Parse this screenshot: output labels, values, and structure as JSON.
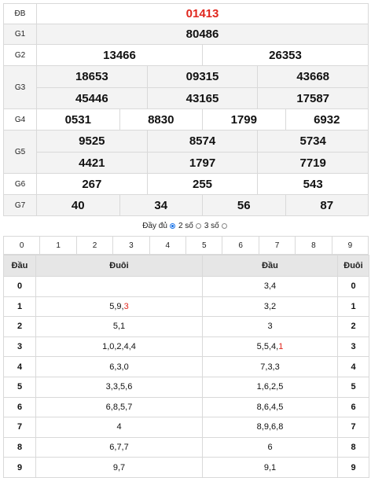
{
  "results": {
    "db": {
      "label": "ĐB",
      "numbers": [
        "01413"
      ]
    },
    "g1": {
      "label": "G1",
      "numbers": [
        "80486"
      ]
    },
    "g2": {
      "label": "G2",
      "numbers": [
        "13466",
        "26353"
      ]
    },
    "g3": {
      "label": "G3",
      "numbers": [
        "18653",
        "09315",
        "43668",
        "45446",
        "43165",
        "17587"
      ]
    },
    "g4": {
      "label": "G4",
      "numbers": [
        "0531",
        "8830",
        "1799",
        "6932"
      ]
    },
    "g5": {
      "label": "G5",
      "numbers": [
        "9525",
        "8574",
        "5734",
        "4421",
        "1797",
        "7719"
      ]
    },
    "g6": {
      "label": "G6",
      "numbers": [
        "267",
        "255",
        "543"
      ]
    },
    "g7": {
      "label": "G7",
      "numbers": [
        "40",
        "34",
        "56",
        "87"
      ]
    }
  },
  "options": {
    "full": "Đầy đủ",
    "two": "2 số",
    "three": "3 số",
    "selected": "two"
  },
  "digit_tabs": [
    "0",
    "1",
    "2",
    "3",
    "4",
    "5",
    "6",
    "7",
    "8",
    "9"
  ],
  "loto": {
    "headers": {
      "dau": "Đầu",
      "duoi": "Đuôi",
      "dau2": "Đầu",
      "duoi2": "Đuôi"
    },
    "rows": [
      {
        "left_digit": "0",
        "left_vals": "",
        "left_red": "",
        "right_vals": "3,4",
        "right_red": "",
        "right_digit": "0"
      },
      {
        "left_digit": "1",
        "left_vals": "5,9,",
        "left_red": "3",
        "right_vals": "3,2",
        "right_red": "",
        "right_digit": "1"
      },
      {
        "left_digit": "2",
        "left_vals": "5,1",
        "left_red": "",
        "right_vals": "3",
        "right_red": "",
        "right_digit": "2"
      },
      {
        "left_digit": "3",
        "left_vals": "1,0,2,4,4",
        "left_red": "",
        "right_vals": "5,5,4,",
        "right_red": "1",
        "right_digit": "3"
      },
      {
        "left_digit": "4",
        "left_vals": "6,3,0",
        "left_red": "",
        "right_vals": "7,3,3",
        "right_red": "",
        "right_digit": "4"
      },
      {
        "left_digit": "5",
        "left_vals": "3,3,5,6",
        "left_red": "",
        "right_vals": "1,6,2,5",
        "right_red": "",
        "right_digit": "5"
      },
      {
        "left_digit": "6",
        "left_vals": "6,8,5,7",
        "left_red": "",
        "right_vals": "8,6,4,5",
        "right_red": "",
        "right_digit": "6"
      },
      {
        "left_digit": "7",
        "left_vals": "4",
        "left_red": "",
        "right_vals": "8,9,6,8",
        "right_red": "",
        "right_digit": "7"
      },
      {
        "left_digit": "8",
        "left_vals": "6,7,7",
        "left_red": "",
        "right_vals": "6",
        "right_red": "",
        "right_digit": "8"
      },
      {
        "left_digit": "9",
        "left_vals": "9,7",
        "left_red": "",
        "right_vals": "9,1",
        "right_red": "",
        "right_digit": "9"
      }
    ]
  }
}
